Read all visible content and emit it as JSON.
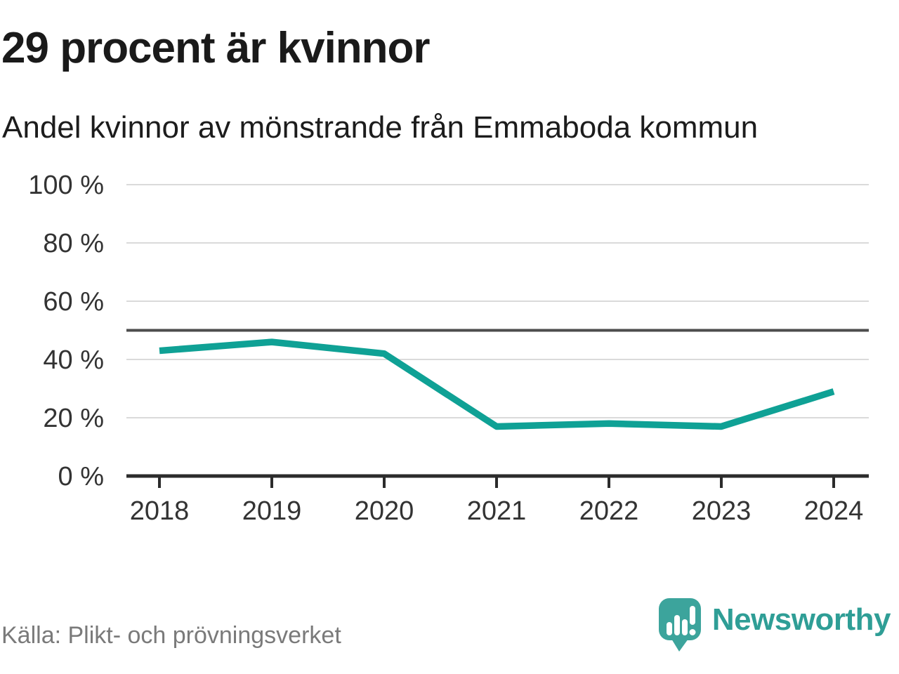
{
  "header": {
    "title": "29 procent är kvinnor",
    "subtitle": "Andel kvinnor av mönstrande från Emmaboda kommun"
  },
  "chart_data": {
    "type": "line",
    "x": [
      "2018",
      "2019",
      "2020",
      "2021",
      "2022",
      "2023",
      "2024"
    ],
    "values": [
      43,
      46,
      42,
      17,
      18,
      17,
      29
    ],
    "series_name": "Andel kvinnor av mönstrande från Emmaboda kommun",
    "title": "29 procent är kvinnor",
    "xlabel": "",
    "ylabel": "",
    "ylim": [
      0,
      100
    ],
    "yticks": [
      0,
      20,
      40,
      60,
      80,
      100
    ],
    "ytick_labels": [
      "0 %",
      "20 %",
      "40 %",
      "60 %",
      "80 %",
      "100 %"
    ],
    "reference_line": 50,
    "grid": true,
    "legend_position": "none"
  },
  "footer": {
    "source": "Källa: Plikt- och prövningsverket",
    "brand": "Newsworthy"
  },
  "colors": {
    "accent": "#0FA195",
    "grid": "#dadada",
    "axis": "#2b2b2b",
    "reference_line": "#4d4d4d",
    "tick_text": "#333333",
    "title_text": "#1a1a1a",
    "muted_text": "#7a7a7a",
    "brand_mark": "#3CA49C",
    "brand_text": "#2F9E96"
  }
}
